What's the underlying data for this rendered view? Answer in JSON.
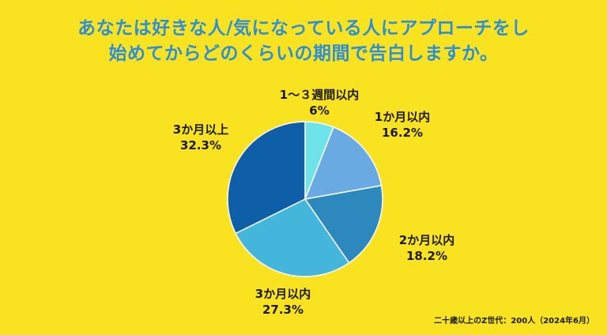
{
  "title": {
    "line1": "あなたは好きな人/気になっている人にアプローチをし",
    "line2": "始めてからどのくらいの期間で告白しますか。"
  },
  "chart_data": {
    "type": "pie",
    "start_angle": "12 o'clock",
    "direction": "clockwise",
    "slices": [
      {
        "label": "1～３週間以内",
        "value": 6,
        "value_text": "6%",
        "color": "#6ee4ea"
      },
      {
        "label": "1か月以内",
        "value": 16.2,
        "value_text": "16.2%",
        "color": "#6aaae2"
      },
      {
        "label": "2か月以内",
        "value": 18.2,
        "value_text": "18.2%",
        "color": "#2c88bd"
      },
      {
        "label": "3か月以内",
        "value": 27.3,
        "value_text": "27.3%",
        "color": "#44b6dc"
      },
      {
        "label": "3か月以上",
        "value": 32.3,
        "value_text": "32.3%",
        "color": "#0e5fa8"
      }
    ]
  },
  "footnote": "二十歳以上のZ世代：200人（2024年6月）"
}
